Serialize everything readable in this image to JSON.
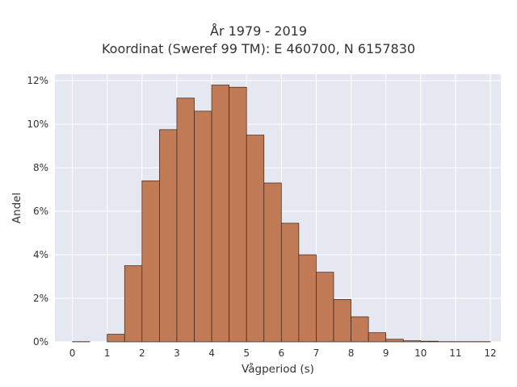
{
  "chart_data": {
    "type": "bar",
    "title": "År 1979 - 2019",
    "subtitle": "Koordinat (Sweref 99 TM): E 460700, N 6157830",
    "xlabel": "Vågperiod (s)",
    "ylabel": "Andel",
    "bin_width": 0.5,
    "bins_start": [
      0,
      0.5,
      1,
      1.5,
      2,
      2.5,
      3,
      3.5,
      4,
      4.5,
      5,
      5.5,
      6,
      6.5,
      7,
      7.5,
      8,
      8.5,
      9,
      9.5,
      10,
      10.5,
      11,
      11.5
    ],
    "values": [
      0.01,
      0.0,
      0.35,
      3.5,
      7.4,
      9.75,
      11.2,
      10.6,
      11.8,
      11.7,
      9.5,
      7.3,
      5.45,
      4.0,
      3.2,
      1.95,
      1.15,
      0.42,
      0.12,
      0.05,
      0.03,
      0.01,
      0.01,
      0.01
    ],
    "xlim": [
      -0.5,
      12.3
    ],
    "ylim": [
      0,
      12.3
    ],
    "x_ticks": [
      0,
      1,
      2,
      3,
      4,
      5,
      6,
      7,
      8,
      9,
      10,
      11,
      12
    ],
    "x_tick_labels": [
      "0",
      "1",
      "2",
      "3",
      "4",
      "5",
      "6",
      "7",
      "8",
      "9",
      "10",
      "11",
      "12"
    ],
    "y_ticks": [
      0,
      2,
      4,
      6,
      8,
      10,
      12
    ],
    "y_tick_labels": [
      "0%",
      "2%",
      "4%",
      "6%",
      "8%",
      "10%",
      "12%"
    ],
    "grid": true,
    "colors": {
      "bar_fill": "#c07a55",
      "bar_edge": "#3a2418",
      "plot_bg": "#e5e8f0",
      "grid": "#ffffff"
    }
  }
}
